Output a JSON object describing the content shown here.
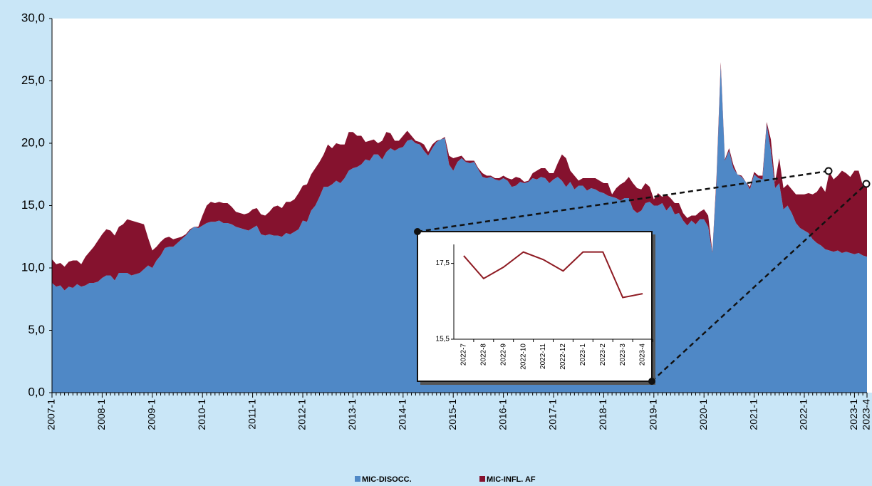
{
  "chart_data": [
    {
      "type": "area",
      "categories": [
        "2007-1",
        null,
        null,
        null,
        null,
        null,
        null,
        null,
        null,
        null,
        null,
        null,
        "2008-1",
        null,
        null,
        null,
        null,
        null,
        null,
        null,
        null,
        null,
        null,
        null,
        "2009-1",
        null,
        null,
        null,
        null,
        null,
        null,
        null,
        null,
        null,
        null,
        null,
        "2010-1",
        null,
        null,
        null,
        null,
        null,
        null,
        null,
        null,
        null,
        null,
        null,
        "2011-1",
        null,
        null,
        null,
        null,
        null,
        null,
        null,
        null,
        null,
        null,
        null,
        "2012-1",
        null,
        null,
        null,
        null,
        null,
        null,
        null,
        null,
        null,
        null,
        null,
        "2013-1",
        null,
        null,
        null,
        null,
        null,
        null,
        null,
        null,
        null,
        null,
        null,
        "2014-1",
        null,
        null,
        null,
        null,
        null,
        null,
        null,
        null,
        null,
        null,
        null,
        "2015-1",
        null,
        null,
        null,
        null,
        null,
        null,
        null,
        null,
        null,
        null,
        null,
        "2016-1",
        null,
        null,
        null,
        null,
        null,
        null,
        null,
        null,
        null,
        null,
        null,
        "2017-1",
        null,
        null,
        null,
        null,
        null,
        null,
        null,
        null,
        null,
        null,
        null,
        "2018-1",
        null,
        null,
        null,
        null,
        null,
        null,
        null,
        null,
        null,
        null,
        null,
        "2019-1",
        null,
        null,
        null,
        null,
        null,
        null,
        null,
        null,
        null,
        null,
        null,
        "2020-1",
        null,
        null,
        null,
        null,
        null,
        null,
        null,
        null,
        null,
        null,
        null,
        "2021-1",
        null,
        null,
        null,
        null,
        null,
        null,
        null,
        null,
        null,
        null,
        null,
        "2022-1",
        null,
        null,
        null,
        null,
        null,
        null,
        null,
        null,
        null,
        null,
        null,
        "2023-1",
        null,
        null,
        "2023-4"
      ],
      "series": [
        {
          "name": "MIC-DISOCC.",
          "color": "#4f88c6",
          "values": [
            8.8,
            8.5,
            8.6,
            8.2,
            8.5,
            8.4,
            8.7,
            8.5,
            8.6,
            8.8,
            8.8,
            8.9,
            9.2,
            9.4,
            9.4,
            9.0,
            9.6,
            9.6,
            9.6,
            9.4,
            9.5,
            9.6,
            9.9,
            10.2,
            10.0,
            10.6,
            11.0,
            11.6,
            11.7,
            11.7,
            12.0,
            12.3,
            12.6,
            13.0,
            13.3,
            13.2,
            13.4,
            13.6,
            13.7,
            13.7,
            13.8,
            13.6,
            13.6,
            13.5,
            13.3,
            13.2,
            13.1,
            13.0,
            13.2,
            13.4,
            12.7,
            12.6,
            12.7,
            12.6,
            12.6,
            12.5,
            12.8,
            12.7,
            12.9,
            13.1,
            13.8,
            13.7,
            14.6,
            15.0,
            15.7,
            16.5,
            16.5,
            16.7,
            17.0,
            16.8,
            17.2,
            17.8,
            18.0,
            18.1,
            18.3,
            18.7,
            18.6,
            19.1,
            19.1,
            18.7,
            19.3,
            19.6,
            19.4,
            19.6,
            19.7,
            20.2,
            20.3,
            20.0,
            19.9,
            19.4,
            19.0,
            19.6,
            20.1,
            20.3,
            20.4,
            18.3,
            17.8,
            18.5,
            18.8,
            18.5,
            18.4,
            18.5,
            17.9,
            17.3,
            17.2,
            17.3,
            17.1,
            17.0,
            17.2,
            17.0,
            16.5,
            16.6,
            16.9,
            16.8,
            16.9,
            17.2,
            17.1,
            17.3,
            17.2,
            16.8,
            17.1,
            17.3,
            17.0,
            16.5,
            16.9,
            16.3,
            16.6,
            16.6,
            16.2,
            16.4,
            16.3,
            16.1,
            16.0,
            15.8,
            15.7,
            15.6,
            15.4,
            15.6,
            15.6,
            14.7,
            14.4,
            14.6,
            15.2,
            15.3,
            15.0,
            15.0,
            15.2,
            14.6,
            15.0,
            14.3,
            14.4,
            13.8,
            13.4,
            13.8,
            13.5,
            13.9,
            13.9,
            13.3,
            11.2,
            17.0,
            26.2,
            18.6,
            19.4,
            18.0,
            17.5,
            17.3,
            16.9,
            16.3,
            17.5,
            17.2,
            17.1,
            21.5,
            19.4,
            16.4,
            16.8,
            14.7,
            15.0,
            14.4,
            13.6,
            13.2,
            13.0,
            12.8,
            12.3,
            12.0,
            11.8,
            11.5,
            11.4,
            11.3,
            11.4,
            11.2,
            11.3,
            11.2,
            11.1,
            11.2,
            11.0,
            10.9
          ]
        },
        {
          "name": "MIC-INFL. AF",
          "color": "#85122e",
          "values": [
            1.9,
            1.8,
            1.8,
            1.9,
            2.0,
            2.2,
            1.9,
            1.8,
            2.3,
            2.5,
            2.9,
            3.3,
            3.5,
            3.7,
            3.6,
            3.6,
            3.7,
            3.9,
            4.3,
            4.4,
            4.2,
            4.0,
            3.6,
            2.2,
            1.4,
            1.1,
            1.1,
            0.8,
            0.8,
            0.6,
            0.4,
            0.2,
            0.1,
            0.1,
            0.0,
            0.1,
            0.8,
            1.4,
            1.6,
            1.5,
            1.5,
            1.6,
            1.6,
            1.4,
            1.2,
            1.2,
            1.2,
            1.4,
            1.5,
            1.4,
            1.6,
            1.6,
            1.8,
            2.3,
            2.4,
            2.3,
            2.5,
            2.6,
            2.6,
            2.9,
            2.8,
            3.0,
            2.9,
            3.0,
            2.8,
            2.6,
            3.4,
            2.9,
            3.0,
            3.1,
            2.7,
            3.1,
            2.9,
            2.5,
            2.3,
            1.4,
            1.6,
            1.2,
            0.9,
            1.5,
            1.6,
            1.2,
            0.8,
            0.6,
            0.9,
            0.8,
            0.3,
            0.2,
            0.2,
            0.5,
            0.3,
            0.3,
            0.1,
            0.0,
            0.1,
            0.7,
            1.0,
            0.4,
            0.2,
            0.1,
            0.2,
            0.1,
            0.1,
            0.3,
            0.2,
            0.1,
            0.1,
            0.2,
            0.2,
            0.2,
            0.6,
            0.7,
            0.3,
            0.1,
            0.1,
            0.4,
            0.7,
            0.7,
            0.8,
            0.8,
            0.5,
            1.1,
            2.1,
            2.3,
            0.9,
            1.1,
            0.4,
            0.6,
            1.0,
            0.8,
            0.9,
            0.9,
            0.8,
            1.0,
            0.2,
            0.8,
            1.3,
            1.3,
            1.7,
            2.1,
            2.0,
            1.7,
            1.6,
            1.2,
            0.5,
            1.0,
            0.5,
            1.3,
            0.6,
            0.9,
            0.8,
            0.6,
            0.6,
            0.4,
            0.7,
            0.6,
            0.8,
            0.9,
            0.1,
            0.4,
            0.3,
            0.1,
            0.2,
            0.3,
            0.0,
            0.1,
            0.0,
            0.2,
            0.2,
            0.2,
            0.3,
            0.2,
            0.9,
            0.5,
            2.0,
            1.7,
            1.7,
            1.9,
            2.3,
            2.7,
            2.9,
            3.2,
            3.6,
            4.1,
            4.8,
            4.6,
            6.3,
            5.8,
            6.0,
            6.6,
            6.3,
            6.1,
            6.7,
            6.6,
            5.6,
            5.8
          ]
        }
      ],
      "ylim": [
        0,
        30
      ],
      "yticks": [
        {
          "value": 0,
          "label": "0,0"
        },
        {
          "value": 5,
          "label": "5,0"
        },
        {
          "value": 10,
          "label": "10,0"
        },
        {
          "value": 15,
          "label": "15,0"
        },
        {
          "value": 20,
          "label": "20,0"
        },
        {
          "value": 25,
          "label": "25,0"
        },
        {
          "value": 30,
          "label": "30,0"
        }
      ],
      "grid": false,
      "legend": "bottom"
    },
    {
      "type": "line",
      "categories": [
        "2022-7",
        "2022-8",
        "2022-9",
        "2022-10",
        "2022-11",
        "2022-12",
        "2023-1",
        "2023-2",
        "2023-3",
        "2023-4"
      ],
      "values": [
        17.7,
        17.1,
        17.4,
        17.8,
        17.6,
        17.3,
        17.8,
        17.8,
        16.6,
        16.7
      ],
      "color": "#8e1a22",
      "ylim": [
        15.5,
        18
      ],
      "yticks": [
        {
          "value": 15.5,
          "label": "15,5"
        },
        {
          "value": 17.5,
          "label": "17,5"
        }
      ],
      "grid": false
    }
  ]
}
